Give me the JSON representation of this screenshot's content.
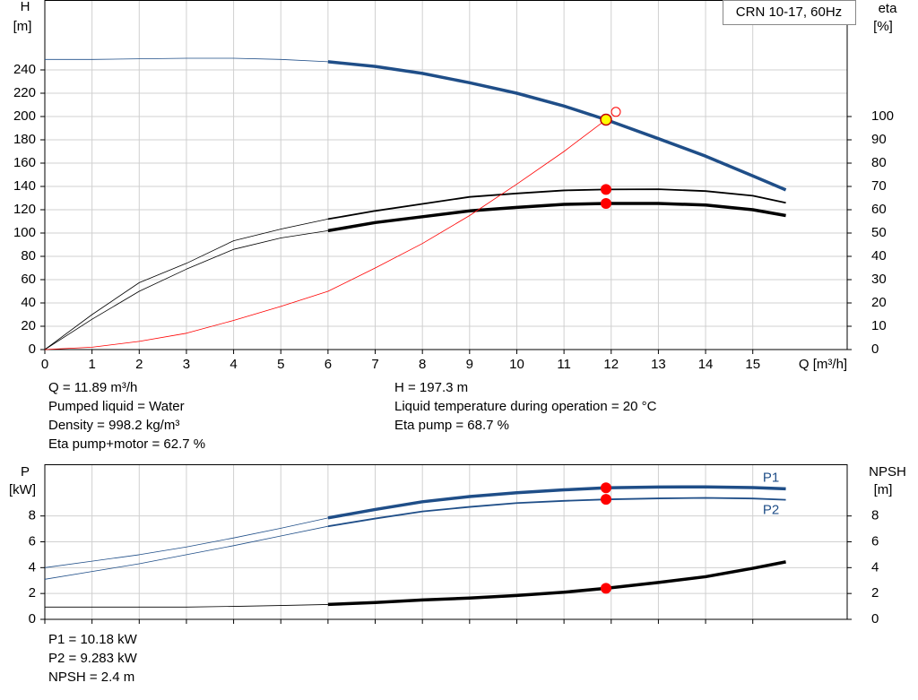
{
  "chart_data": [
    {
      "type": "line",
      "title": "CRN 10-17, 60Hz",
      "y_label": "H",
      "y_unit": "[m]",
      "y2_label": "eta",
      "y2_unit": "[%]",
      "x_label": "Q [m³/h]",
      "x": [
        0,
        1,
        2,
        3,
        4,
        5,
        6,
        7,
        8,
        9,
        10,
        11,
        11.89,
        13,
        14,
        15,
        15.7
      ],
      "xlim": [
        0,
        17
      ],
      "xticks": [
        0,
        1,
        2,
        3,
        4,
        5,
        6,
        7,
        8,
        9,
        10,
        11,
        12,
        13,
        14,
        15
      ],
      "ylim": [
        0,
        300
      ],
      "yticks": [
        0,
        20,
        40,
        60,
        80,
        100,
        120,
        140,
        160,
        180,
        200,
        220,
        240
      ],
      "y2lim": [
        0,
        150
      ],
      "y2ticks": [
        0,
        10,
        20,
        30,
        40,
        50,
        60,
        70,
        80,
        90,
        100
      ],
      "grid": true,
      "operating_range": [
        6,
        15.7
      ],
      "duty_q": 11.89,
      "series": [
        {
          "color": "#1f4e88",
          "weight": "bold",
          "marker": "#ffff00",
          "values": [
            249,
            249,
            249.5,
            250,
            250,
            249,
            247,
            243,
            237,
            229,
            220,
            209,
            197.3,
            181,
            166,
            149,
            137
          ]
        },
        {
          "color": "#000000",
          "weight": "normal",
          "axis": "y2",
          "marker": "#ff0000",
          "values": [
            0,
            15,
            28.7,
            37,
            46.7,
            51.7,
            56,
            59.5,
            62.5,
            65.5,
            67,
            68.3,
            68.7,
            68.8,
            68,
            66,
            63
          ]
        },
        {
          "color": "#000000",
          "weight": "bold",
          "axis": "y2",
          "marker": "#ff0000",
          "values": [
            0,
            13,
            25,
            34.5,
            43,
            47.9,
            51,
            54.5,
            57,
            59.5,
            61,
            62.3,
            62.7,
            62.7,
            62,
            60,
            57.5
          ]
        },
        {
          "color": "#ff0000",
          "weight": "hairline",
          "values": [
            0,
            2,
            7,
            14,
            25,
            37,
            50,
            70,
            91,
            115,
            142,
            170,
            197.3,
            null,
            null,
            null,
            null
          ]
        }
      ],
      "points": [
        {
          "x": 12.1,
          "y": 204,
          "color": "#ff0000"
        }
      ],
      "info": [
        [
          "Q = 11.89 m³/h",
          "Pumped liquid = Water",
          "Density = 998.2 kg/m³",
          "Eta pump+motor = 62.7 %"
        ],
        [
          "H = 197.3 m",
          "Liquid temperature during operation = 20 °C",
          "Eta pump = 68.7 %"
        ]
      ]
    },
    {
      "type": "line",
      "y_label": "P",
      "y_unit": "[kW]",
      "y2_label": "NPSH",
      "y2_unit": "[m]",
      "x": [
        0,
        1,
        2,
        3,
        4,
        5,
        6,
        7,
        8,
        9,
        10,
        11,
        11.89,
        13,
        14,
        15,
        15.7
      ],
      "xlim": [
        0,
        17
      ],
      "xticks": [
        0,
        1,
        2,
        3,
        4,
        5,
        6,
        7,
        8,
        9,
        10,
        11,
        12,
        13,
        14,
        15
      ],
      "ylim": [
        0,
        12
      ],
      "yticks": [
        0,
        2,
        4,
        6,
        8
      ],
      "y2lim": [
        0,
        12
      ],
      "y2ticks": [
        0,
        2,
        4,
        6,
        8
      ],
      "grid": true,
      "operating_range": [
        6,
        15.7
      ],
      "duty_q": 11.89,
      "series": [
        {
          "name": "P1",
          "color": "#1f4e88",
          "weight": "bold",
          "marker": "#ff0000",
          "values": [
            4.0,
            4.5,
            5.0,
            5.6,
            6.3,
            7.05,
            7.85,
            8.5,
            9.1,
            9.5,
            9.8,
            10.02,
            10.18,
            10.24,
            10.25,
            10.2,
            10.1
          ]
        },
        {
          "name": "P2",
          "color": "#1f4e88",
          "weight": "normal",
          "marker": "#ff0000",
          "values": [
            3.1,
            3.7,
            4.3,
            5.0,
            5.7,
            6.45,
            7.2,
            7.8,
            8.35,
            8.7,
            9.0,
            9.17,
            9.283,
            9.36,
            9.4,
            9.35,
            9.25
          ]
        },
        {
          "color": "#000000",
          "weight": "bold",
          "axis": "y2",
          "marker": "#ff0000",
          "values": [
            0.95,
            0.95,
            0.95,
            0.95,
            1.0,
            1.07,
            1.15,
            1.3,
            1.5,
            1.65,
            1.85,
            2.1,
            2.4,
            2.85,
            3.3,
            3.95,
            4.45
          ]
        }
      ],
      "info": [
        [
          "P1 = 10.18 kW",
          "P2 = 9.283 kW",
          "NPSH = 2.4 m"
        ]
      ]
    }
  ]
}
